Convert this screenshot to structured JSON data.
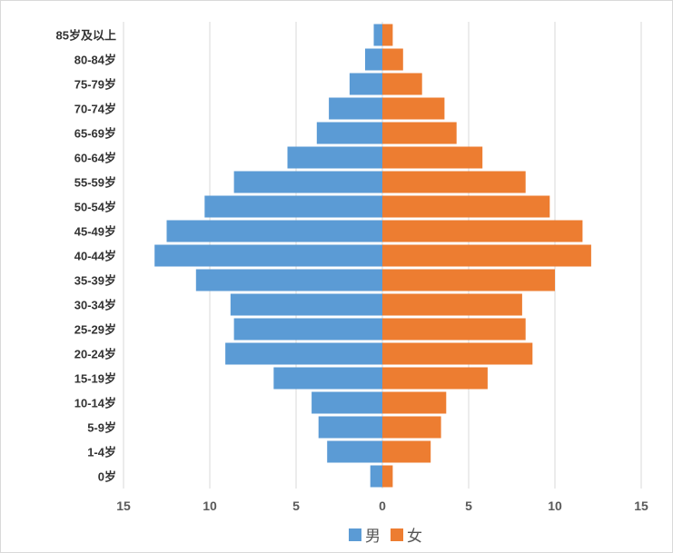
{
  "chart_data": {
    "type": "bar",
    "orientation": "horizontal",
    "layout": "population-pyramid",
    "categories": [
      "0岁",
      "1-4岁",
      "5-9岁",
      "10-14岁",
      "15-19岁",
      "20-24岁",
      "25-29岁",
      "30-34岁",
      "35-39岁",
      "40-44岁",
      "45-49岁",
      "50-54岁",
      "55-59岁",
      "60-64岁",
      "65-69岁",
      "70-74岁",
      "75-79岁",
      "80-84岁",
      "85岁及以上"
    ],
    "series": [
      {
        "name": "男",
        "color": "#5b9bd5",
        "side": "left",
        "values": [
          0.7,
          3.2,
          3.7,
          4.1,
          6.3,
          9.1,
          8.6,
          8.8,
          10.8,
          13.2,
          12.5,
          10.3,
          8.6,
          5.5,
          3.8,
          3.1,
          1.9,
          1.0,
          0.5
        ]
      },
      {
        "name": "女",
        "color": "#ed7d31",
        "side": "right",
        "values": [
          0.6,
          2.8,
          3.4,
          3.7,
          6.1,
          8.7,
          8.3,
          8.1,
          10.0,
          12.1,
          11.6,
          9.7,
          8.3,
          5.8,
          4.3,
          3.6,
          2.3,
          1.2,
          0.6
        ]
      }
    ],
    "x_ticks": [
      "15",
      "10",
      "5",
      "0",
      "5",
      "10",
      "15"
    ],
    "xlim": [
      -15,
      15
    ],
    "grid": "vertical",
    "legend": "bottom-center",
    "title": "",
    "xlabel": "",
    "ylabel": ""
  }
}
